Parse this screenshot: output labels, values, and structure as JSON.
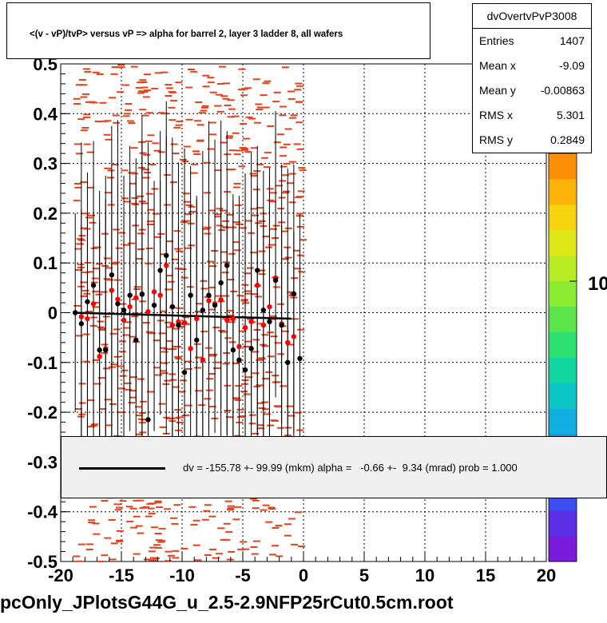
{
  "title": "<(v - vP)/tvP> versus   vP => alpha for barrel 2, layer 3 ladder 8, all wafers",
  "bottom_title": "pcOnly_JPlotsG44G_u_2.5-2.9NFP25rCut0.5cm.root",
  "stats": {
    "name": "dvOvertvPvP3008",
    "rows": [
      {
        "label": "Entries",
        "value": "1407"
      },
      {
        "label": "Mean x",
        "value": "-9.09"
      },
      {
        "label": "Mean y",
        "value": "-0.00863"
      },
      {
        "label": "RMS x",
        "value": "5.301"
      },
      {
        "label": "RMS y",
        "value": "0.2849"
      }
    ]
  },
  "fit_legend": "dv = -155.78 +- 99.99 (mkm) alpha =   -0.66 +-  9.34 (mrad) prob = 1.000",
  "colorbar_labels": [
    "10",
    "10"
  ],
  "colors": {
    "red_marker": "#ff0000",
    "black_marker": "#000000",
    "histogram_cells": "#e8401a",
    "fit_box": "#f0f0f0"
  },
  "chart_data": {
    "type": "scatter",
    "xlim": [
      -20,
      20
    ],
    "ylim": [
      -0.5,
      0.5
    ],
    "x_ticks": [
      "-20",
      "-15",
      "-10",
      "-5",
      "0",
      "5",
      "10",
      "15",
      "20"
    ],
    "y_ticks": [
      "-0.5",
      "-0.4",
      "-0.3",
      "-0.2",
      "-0.1",
      "0",
      "0.1",
      "0.2",
      "0.3",
      "0.4",
      "0.5"
    ],
    "grid": true,
    "fit_line": {
      "x": [
        -19,
        -1
      ],
      "y": [
        0.0,
        -0.012
      ]
    },
    "black_points": [
      {
        "x": -18.8,
        "y": 0.0
      },
      {
        "x": -18.3,
        "y": -0.022
      },
      {
        "x": -17.8,
        "y": 0.022
      },
      {
        "x": -17.3,
        "y": 0.055
      },
      {
        "x": -16.8,
        "y": -0.075
      },
      {
        "x": -16.3,
        "y": -0.075
      },
      {
        "x": -15.8,
        "y": 0.076
      },
      {
        "x": -15.3,
        "y": 0.018
      },
      {
        "x": -14.8,
        "y": 0.005
      },
      {
        "x": -14.3,
        "y": 0.035
      },
      {
        "x": -13.8,
        "y": -0.055
      },
      {
        "x": -13.3,
        "y": 0.037
      },
      {
        "x": -12.8,
        "y": -0.215
      },
      {
        "x": -12.3,
        "y": 0.015
      },
      {
        "x": -11.8,
        "y": 0.085
      },
      {
        "x": -11.3,
        "y": 0.115
      },
      {
        "x": -10.8,
        "y": 0.012
      },
      {
        "x": -10.3,
        "y": -0.025
      },
      {
        "x": -9.8,
        "y": -0.12
      },
      {
        "x": -9.3,
        "y": 0.035
      },
      {
        "x": -8.8,
        "y": -0.055
      },
      {
        "x": -8.3,
        "y": 0.005
      },
      {
        "x": -7.8,
        "y": 0.035
      },
      {
        "x": -7.3,
        "y": 0.015
      },
      {
        "x": -6.8,
        "y": 0.06
      },
      {
        "x": -6.3,
        "y": 0.095
      },
      {
        "x": -5.8,
        "y": -0.075
      },
      {
        "x": -5.3,
        "y": -0.095
      },
      {
        "x": -4.8,
        "y": -0.115
      },
      {
        "x": -4.3,
        "y": -0.072
      },
      {
        "x": -3.8,
        "y": 0.085
      },
      {
        "x": -3.3,
        "y": 0.005
      },
      {
        "x": -2.8,
        "y": -0.018
      },
      {
        "x": -2.3,
        "y": 0.065
      },
      {
        "x": -1.8,
        "y": -0.025
      },
      {
        "x": -1.3,
        "y": -0.1
      },
      {
        "x": -0.8,
        "y": 0.038
      },
      {
        "x": -0.3,
        "y": -0.092
      }
    ],
    "red_points": [
      {
        "x": -18.3,
        "y": -0.008
      },
      {
        "x": -17.8,
        "y": -0.012
      },
      {
        "x": -17.3,
        "y": 0.018
      },
      {
        "x": -16.8,
        "y": -0.088
      },
      {
        "x": -16.3,
        "y": -0.072
      },
      {
        "x": -15.8,
        "y": 0.045
      },
      {
        "x": -15.3,
        "y": 0.027
      },
      {
        "x": -14.8,
        "y": -0.015
      },
      {
        "x": -14.3,
        "y": 0.012
      },
      {
        "x": -13.8,
        "y": 0.03
      },
      {
        "x": -13.3,
        "y": 0.038
      },
      {
        "x": -12.8,
        "y": 0.002
      },
      {
        "x": -12.3,
        "y": 0.042
      },
      {
        "x": -11.8,
        "y": 0.035
      },
      {
        "x": -11.3,
        "y": 0.095
      },
      {
        "x": -10.8,
        "y": -0.025
      },
      {
        "x": -10.3,
        "y": -0.018
      },
      {
        "x": -9.8,
        "y": -0.02
      },
      {
        "x": -9.3,
        "y": -0.072
      },
      {
        "x": -8.8,
        "y": -0.012
      },
      {
        "x": -8.3,
        "y": -0.095
      },
      {
        "x": -7.8,
        "y": 0.024
      },
      {
        "x": -7.3,
        "y": 0.018
      },
      {
        "x": -6.8,
        "y": 0.026
      },
      {
        "x": -6.3,
        "y": -0.015
      },
      {
        "x": -5.8,
        "y": -0.012
      },
      {
        "x": -5.3,
        "y": -0.068
      },
      {
        "x": -4.8,
        "y": -0.03
      },
      {
        "x": -4.3,
        "y": -0.018
      },
      {
        "x": -3.8,
        "y": 0.055
      },
      {
        "x": -3.3,
        "y": -0.025
      },
      {
        "x": -2.8,
        "y": 0.012
      },
      {
        "x": -2.3,
        "y": 0.07
      },
      {
        "x": -1.8,
        "y": -0.022
      },
      {
        "x": -1.3,
        "y": -0.06
      },
      {
        "x": -0.8,
        "y": -0.048
      }
    ]
  }
}
